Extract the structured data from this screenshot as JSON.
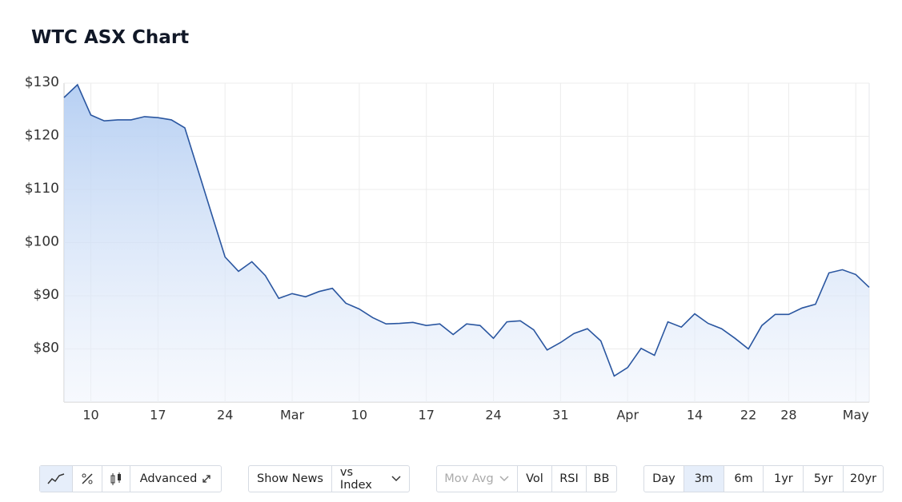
{
  "title": "WTC ASX Chart",
  "chart_data": {
    "type": "area",
    "categories": [
      null,
      null,
      "10",
      null,
      null,
      null,
      null,
      "17",
      null,
      null,
      null,
      null,
      "24",
      null,
      null,
      null,
      null,
      "Mar",
      null,
      null,
      null,
      null,
      "10",
      null,
      null,
      null,
      null,
      "17",
      null,
      null,
      null,
      null,
      "24",
      null,
      null,
      null,
      null,
      "31",
      null,
      null,
      null,
      null,
      "Apr",
      null,
      null,
      null,
      null,
      "14",
      null,
      null,
      null,
      "22",
      null,
      null,
      "28",
      null,
      null,
      null,
      null,
      "May",
      null
    ],
    "series": [
      {
        "color": "#2a56a0",
        "values": [
          127.3,
          129.7,
          124.0,
          122.9,
          123.1,
          123.1,
          123.7,
          123.5,
          123.1,
          121.6,
          113.5,
          105.4,
          97.3,
          94.6,
          96.4,
          93.8,
          89.5,
          90.4,
          89.8,
          90.8,
          91.4,
          88.6,
          87.5,
          85.9,
          84.7,
          84.8,
          85.0,
          84.4,
          84.7,
          82.7,
          84.7,
          84.4,
          82.0,
          85.1,
          85.3,
          83.6,
          79.8,
          81.2,
          82.9,
          83.8,
          81.5,
          74.9,
          76.5,
          80.1,
          78.8,
          85.1,
          84.1,
          86.6,
          84.8,
          83.8,
          82.0,
          80.0,
          84.4,
          86.5,
          86.5,
          87.7,
          88.4,
          94.3,
          94.9,
          94.0,
          91.6
        ]
      }
    ],
    "ylim": [
      70,
      130
    ],
    "yticks": [
      {
        "value": 80,
        "label": "$80"
      },
      {
        "value": 90,
        "label": "$90"
      },
      {
        "value": 100,
        "label": "$100"
      },
      {
        "value": 110,
        "label": "$110"
      },
      {
        "value": 120,
        "label": "$120"
      },
      {
        "value": 130,
        "label": "$130"
      }
    ],
    "grid": true
  },
  "controls": {
    "chart_types": [
      "Advanced"
    ],
    "overlays": [
      "Show News",
      "vs Index"
    ],
    "indicators": [
      "Mov Avg",
      "Vol",
      "RSI",
      "BB"
    ],
    "ranges": [
      "Day",
      "3m",
      "6m",
      "1yr",
      "5yr",
      "20yr"
    ],
    "selected_range": "3m"
  }
}
